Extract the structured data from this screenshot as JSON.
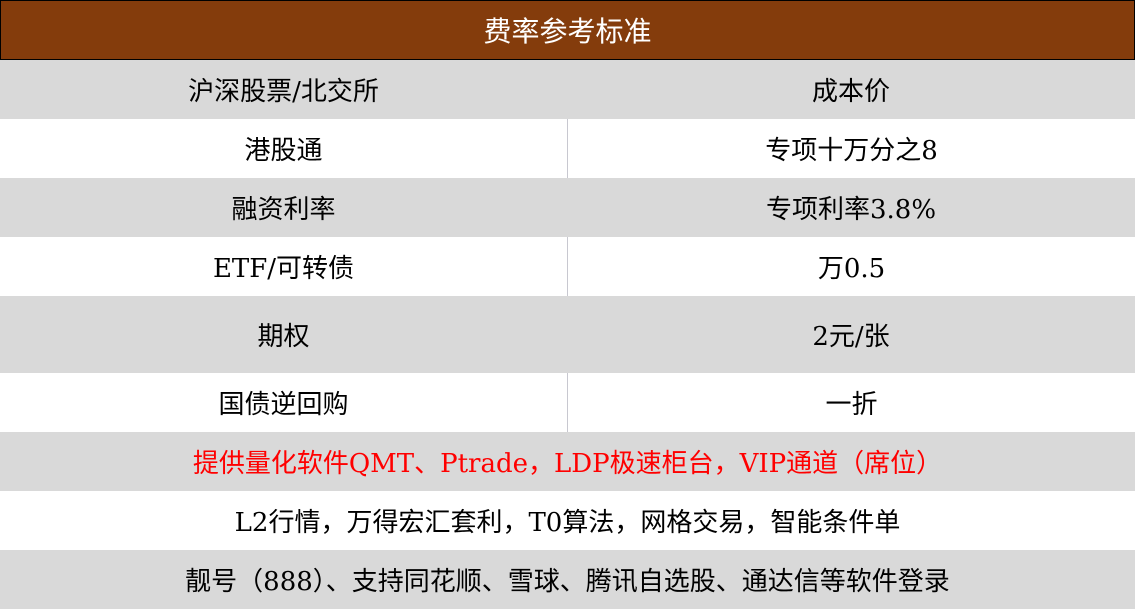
{
  "title": "费率参考标准",
  "rows": [
    {
      "item": "沪深股票/北交所",
      "value": "成本价"
    },
    {
      "item": "港股通",
      "value": "专项十万分之8"
    },
    {
      "item": "融资利率",
      "value": "专项利率3.8%"
    },
    {
      "item": "ETF/可转债",
      "value": "万0.5"
    },
    {
      "item": "期权",
      "value": "2元/张"
    },
    {
      "item": "国债逆回购",
      "value": "一折"
    }
  ],
  "notes": [
    "提供量化软件QMT、Ptrade，LDP极速柜台，VIP通道（席位）",
    "L2行情，万得宏汇套利，T0算法，网格交易，智能条件单",
    "靓号（888）、支持同花顺、雪球、腾讯自选股、通达信等软件登录"
  ],
  "colors": {
    "header_bg": "#843c0c",
    "highlight_text": "#ff0000",
    "stripe": "#d9d9d9"
  }
}
